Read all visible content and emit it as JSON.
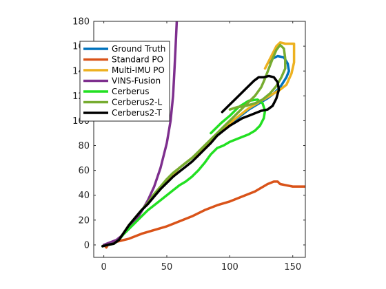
{
  "chart_data": {
    "type": "line",
    "title": "",
    "xlabel": "",
    "ylabel": "",
    "xlim": [
      -8,
      160
    ],
    "ylim": [
      -10,
      180
    ],
    "xticks": [
      0,
      50,
      100,
      150
    ],
    "yticks": [
      0,
      20,
      40,
      60,
      80,
      100,
      120,
      140,
      160,
      180
    ],
    "xtick_labels": [
      "0",
      "50",
      "100",
      "150"
    ],
    "ytick_labels": [
      "0",
      "20",
      "40",
      "60",
      "80",
      "100",
      "120",
      "140",
      "160",
      "180"
    ],
    "grid": false,
    "legend_position": "top-left",
    "series": [
      {
        "name": "Ground Truth",
        "color": "#0072BD",
        "points": [
          [
            -1,
            -1
          ],
          [
            3,
            0
          ],
          [
            8,
            1
          ],
          [
            12,
            4
          ],
          [
            16,
            10
          ],
          [
            20,
            16
          ],
          [
            25,
            22
          ],
          [
            30,
            28
          ],
          [
            35,
            33
          ],
          [
            40,
            39
          ],
          [
            45,
            45
          ],
          [
            50,
            52
          ],
          [
            55,
            57
          ],
          [
            60,
            62
          ],
          [
            65,
            66
          ],
          [
            70,
            70
          ],
          [
            75,
            74
          ],
          [
            80,
            78
          ],
          [
            85,
            83
          ],
          [
            90,
            88
          ],
          [
            95,
            93
          ],
          [
            100,
            97
          ],
          [
            105,
            101
          ],
          [
            110,
            105
          ],
          [
            115,
            109
          ],
          [
            120,
            112
          ],
          [
            125,
            115
          ],
          [
            130,
            118
          ],
          [
            135,
            122
          ],
          [
            140,
            127
          ],
          [
            145,
            135
          ],
          [
            147,
            140
          ],
          [
            146,
            146
          ],
          [
            143,
            151
          ],
          [
            138,
            152
          ],
          [
            134,
            150
          ],
          [
            131,
            147
          ]
        ]
      },
      {
        "name": "Standard PO",
        "color": "#D95319",
        "points": [
          [
            0,
            0
          ],
          [
            2,
            -2
          ],
          [
            4,
            1
          ],
          [
            8,
            2
          ],
          [
            12,
            3
          ],
          [
            20,
            5
          ],
          [
            30,
            9
          ],
          [
            40,
            12
          ],
          [
            50,
            15
          ],
          [
            60,
            19
          ],
          [
            70,
            23
          ],
          [
            80,
            28
          ],
          [
            90,
            32
          ],
          [
            100,
            35
          ],
          [
            110,
            39
          ],
          [
            120,
            43
          ],
          [
            125,
            46
          ],
          [
            130,
            49
          ],
          [
            135,
            51
          ],
          [
            138,
            51
          ],
          [
            140,
            49
          ],
          [
            145,
            48
          ],
          [
            150,
            47
          ],
          [
            155,
            47
          ],
          [
            160,
            47
          ]
        ]
      },
      {
        "name": "Multi-IMU PO",
        "color": "#EDB120",
        "points": [
          [
            -1,
            -1
          ],
          [
            3,
            0
          ],
          [
            8,
            1
          ],
          [
            12,
            4
          ],
          [
            16,
            10
          ],
          [
            20,
            16
          ],
          [
            25,
            22
          ],
          [
            30,
            28
          ],
          [
            35,
            33
          ],
          [
            40,
            39
          ],
          [
            45,
            45
          ],
          [
            50,
            52
          ],
          [
            55,
            57
          ],
          [
            60,
            62
          ],
          [
            65,
            66
          ],
          [
            70,
            70
          ],
          [
            75,
            74
          ],
          [
            80,
            78
          ],
          [
            85,
            83
          ],
          [
            90,
            88
          ],
          [
            95,
            94
          ],
          [
            100,
            98
          ],
          [
            105,
            102
          ],
          [
            110,
            106
          ],
          [
            115,
            110
          ],
          [
            120,
            113
          ],
          [
            125,
            116
          ],
          [
            130,
            119
          ],
          [
            135,
            122
          ],
          [
            140,
            125
          ],
          [
            145,
            129
          ],
          [
            149,
            138
          ],
          [
            151,
            147
          ],
          [
            151,
            158
          ],
          [
            151,
            162
          ],
          [
            148,
            162
          ],
          [
            144,
            162
          ],
          [
            140,
            163
          ],
          [
            137,
            160
          ],
          [
            134,
            154
          ],
          [
            131,
            148
          ],
          [
            128,
            142
          ]
        ]
      },
      {
        "name": "VINS-Fusion",
        "color": "#7E2F8E",
        "points": [
          [
            0,
            0
          ],
          [
            5,
            2
          ],
          [
            10,
            4
          ],
          [
            15,
            8
          ],
          [
            20,
            13
          ],
          [
            25,
            19
          ],
          [
            30,
            27
          ],
          [
            35,
            36
          ],
          [
            40,
            47
          ],
          [
            45,
            62
          ],
          [
            50,
            82
          ],
          [
            53,
            100
          ],
          [
            55,
            120
          ],
          [
            56,
            140
          ],
          [
            57,
            160
          ],
          [
            58,
            182
          ]
        ]
      },
      {
        "name": "Cerberus",
        "color": "#22E022",
        "points": [
          [
            -1,
            -1
          ],
          [
            3,
            0
          ],
          [
            8,
            1
          ],
          [
            12,
            4
          ],
          [
            16,
            9
          ],
          [
            20,
            13
          ],
          [
            25,
            18
          ],
          [
            30,
            23
          ],
          [
            35,
            28
          ],
          [
            40,
            32
          ],
          [
            45,
            36
          ],
          [
            50,
            40
          ],
          [
            55,
            44
          ],
          [
            60,
            48
          ],
          [
            65,
            51
          ],
          [
            70,
            55
          ],
          [
            75,
            60
          ],
          [
            80,
            66
          ],
          [
            85,
            73
          ],
          [
            90,
            78
          ],
          [
            95,
            80
          ],
          [
            100,
            83
          ],
          [
            105,
            85
          ],
          [
            110,
            87
          ],
          [
            115,
            89
          ],
          [
            120,
            92
          ],
          [
            124,
            96
          ],
          [
            127,
            102
          ],
          [
            128,
            108
          ],
          [
            126,
            114
          ],
          [
            122,
            117
          ],
          [
            115,
            116
          ],
          [
            107,
            111
          ],
          [
            100,
            104
          ],
          [
            93,
            98
          ],
          [
            85,
            90
          ]
        ]
      },
      {
        "name": "Cerberus2-L",
        "color": "#77AC30",
        "points": [
          [
            -1,
            -1
          ],
          [
            3,
            0
          ],
          [
            8,
            1
          ],
          [
            12,
            4
          ],
          [
            16,
            10
          ],
          [
            20,
            16
          ],
          [
            25,
            22
          ],
          [
            30,
            28
          ],
          [
            35,
            34
          ],
          [
            40,
            41
          ],
          [
            45,
            47
          ],
          [
            50,
            53
          ],
          [
            55,
            58
          ],
          [
            60,
            62
          ],
          [
            65,
            66
          ],
          [
            70,
            70
          ],
          [
            75,
            75
          ],
          [
            80,
            80
          ],
          [
            85,
            85
          ],
          [
            90,
            90
          ],
          [
            95,
            95
          ],
          [
            100,
            100
          ],
          [
            105,
            105
          ],
          [
            110,
            110
          ],
          [
            115,
            115
          ],
          [
            120,
            120
          ],
          [
            125,
            127
          ],
          [
            128,
            134
          ],
          [
            131,
            142
          ],
          [
            134,
            150
          ],
          [
            137,
            157
          ],
          [
            140,
            161
          ],
          [
            143,
            158
          ],
          [
            144,
            150
          ],
          [
            144,
            142
          ],
          [
            141,
            135
          ],
          [
            137,
            128
          ],
          [
            132,
            122
          ],
          [
            126,
            117
          ],
          [
            120,
            114
          ],
          [
            113,
            112
          ],
          [
            106,
            111
          ],
          [
            100,
            109
          ]
        ]
      },
      {
        "name": "Cerberus2-T",
        "color": "#000000",
        "points": [
          [
            -1,
            -1
          ],
          [
            3,
            0
          ],
          [
            8,
            1
          ],
          [
            12,
            4
          ],
          [
            16,
            10
          ],
          [
            20,
            16
          ],
          [
            25,
            22
          ],
          [
            30,
            28
          ],
          [
            35,
            33
          ],
          [
            40,
            39
          ],
          [
            45,
            45
          ],
          [
            50,
            50
          ],
          [
            55,
            55
          ],
          [
            60,
            59
          ],
          [
            65,
            63
          ],
          [
            70,
            67
          ],
          [
            75,
            72
          ],
          [
            80,
            77
          ],
          [
            85,
            82
          ],
          [
            90,
            88
          ],
          [
            95,
            92
          ],
          [
            100,
            96
          ],
          [
            105,
            99
          ],
          [
            110,
            102
          ],
          [
            115,
            104
          ],
          [
            120,
            106
          ],
          [
            125,
            108
          ],
          [
            130,
            109
          ],
          [
            134,
            112
          ],
          [
            137,
            118
          ],
          [
            139,
            125
          ],
          [
            138,
            131
          ],
          [
            135,
            135
          ],
          [
            131,
            136
          ],
          [
            127,
            135
          ],
          [
            123,
            135
          ],
          [
            119,
            132
          ],
          [
            114,
            127
          ],
          [
            109,
            122
          ],
          [
            104,
            117
          ],
          [
            99,
            112
          ],
          [
            94,
            107
          ]
        ]
      }
    ]
  }
}
